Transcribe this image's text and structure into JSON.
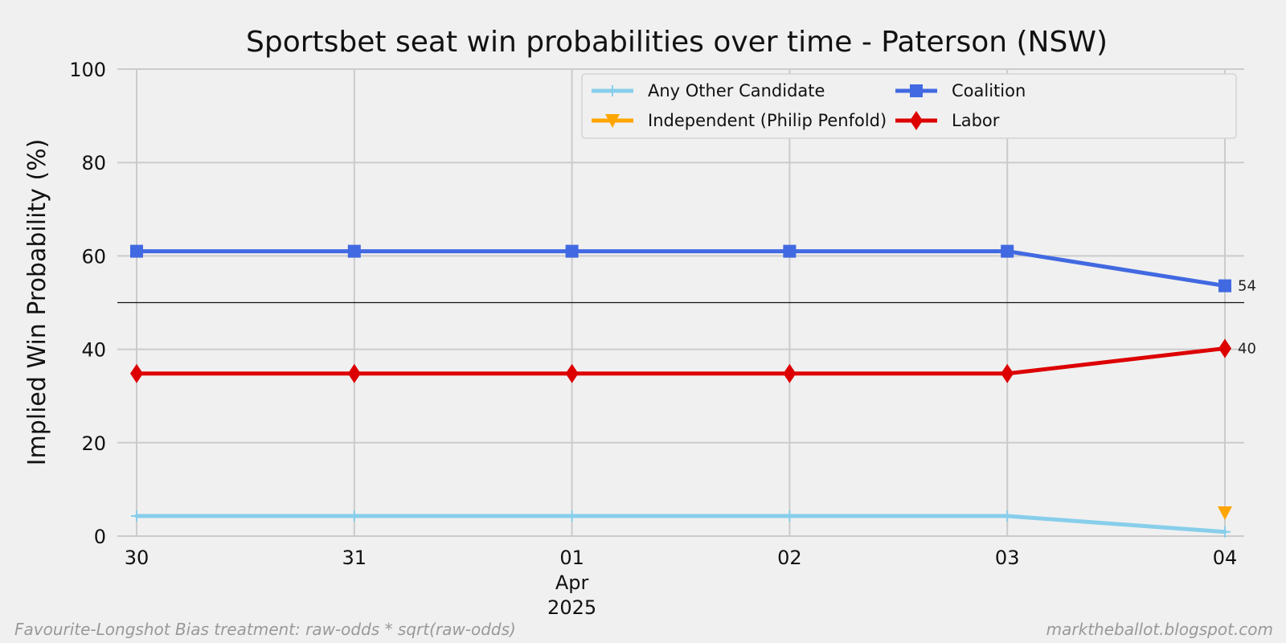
{
  "chart_data": {
    "type": "line",
    "title": "Sportsbet seat win probabilities over time - Paterson (NSW)",
    "xlabel": "",
    "ylabel": "Implied Win Probability (%)",
    "ylim": [
      0,
      100
    ],
    "yticks": [
      0,
      20,
      40,
      60,
      80,
      100
    ],
    "x": [
      "2025-03-30",
      "2025-03-31",
      "2025-04-01",
      "2025-04-02",
      "2025-04-03",
      "2025-04-04"
    ],
    "xtick_labels": [
      "30",
      "31",
      "01",
      "02",
      "03",
      "04"
    ],
    "xtick_sublabel": {
      "month": "Apr",
      "year": "2025"
    },
    "reference_line": 50,
    "grid": true,
    "legend": "top-right",
    "series": [
      {
        "name": "Any Other Candidate",
        "color": "#87ceeb",
        "marker": "plus",
        "values": [
          4.3,
          4.3,
          4.3,
          4.3,
          4.3,
          0.9
        ],
        "end_label": ""
      },
      {
        "name": "Coalition",
        "color": "#4169e1",
        "marker": "square",
        "values": [
          61,
          61,
          61,
          61,
          61,
          53.6
        ],
        "end_label": "54"
      },
      {
        "name": "Independent (Philip Penfold)",
        "color": "#ffa500",
        "marker": "triangle-down",
        "values": [
          null,
          null,
          null,
          null,
          null,
          5.0
        ],
        "end_label": ""
      },
      {
        "name": "Labor",
        "color": "#dd0000",
        "marker": "diamond",
        "values": [
          34.8,
          34.8,
          34.8,
          34.8,
          34.8,
          40.2
        ],
        "end_label": "40"
      }
    ],
    "legend_order": [
      0,
      2,
      1,
      3
    ]
  },
  "footer": {
    "left": "Favourite-Longshot Bias treatment: raw-odds * sqrt(raw-odds)",
    "right": "marktheballot.blogspot.com"
  }
}
